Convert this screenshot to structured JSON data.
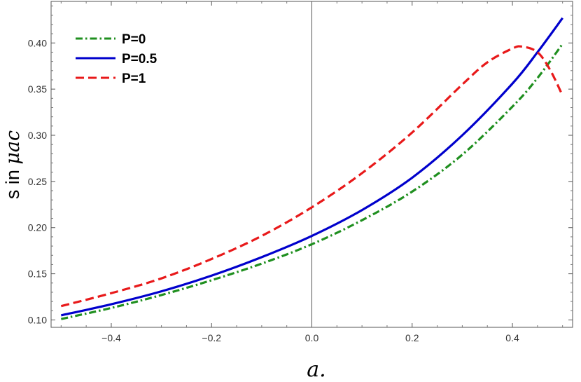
{
  "chart_data": {
    "type": "line",
    "xlabel": "a.",
    "ylabel_plain": "s in ",
    "ylabel_italic": "μac",
    "xlim": [
      -0.52,
      0.52
    ],
    "ylim": [
      0.092,
      0.445
    ],
    "x_ticks": [
      -0.4,
      -0.2,
      0.0,
      0.2,
      0.4
    ],
    "x_tick_labels": [
      "−0.4",
      "−0.2",
      "0.0",
      "0.2",
      "0.4"
    ],
    "y_ticks": [
      0.1,
      0.15,
      0.2,
      0.25,
      0.3,
      0.35,
      0.4
    ],
    "y_tick_labels": [
      "0.10",
      "0.15",
      "0.20",
      "0.25",
      "0.30",
      "0.35",
      "0.40"
    ],
    "grid": false,
    "legend_position": "top-left",
    "vertical_reference_line_x": 0,
    "series": [
      {
        "name": "P=0",
        "color": "#1f8f1f",
        "style": "dash-dot",
        "x": [
          -0.5,
          -0.4,
          -0.3,
          -0.2,
          -0.1,
          0.0,
          0.1,
          0.2,
          0.3,
          0.4,
          0.45,
          0.5
        ],
        "y": [
          0.101,
          0.113,
          0.127,
          0.143,
          0.161,
          0.182,
          0.208,
          0.239,
          0.279,
          0.331,
          0.362,
          0.399
        ]
      },
      {
        "name": "P=0.5",
        "color": "#0000cc",
        "style": "solid",
        "x": [
          -0.5,
          -0.4,
          -0.3,
          -0.2,
          -0.1,
          0.0,
          0.1,
          0.2,
          0.3,
          0.4,
          0.45,
          0.5
        ],
        "y": [
          0.105,
          0.117,
          0.131,
          0.148,
          0.168,
          0.191,
          0.219,
          0.254,
          0.3,
          0.356,
          0.39,
          0.427
        ]
      },
      {
        "name": "P=1",
        "color": "#e8191a",
        "style": "dashed",
        "x": [
          -0.5,
          -0.4,
          -0.3,
          -0.2,
          -0.1,
          0.0,
          0.1,
          0.2,
          0.3,
          0.35,
          0.4,
          0.42,
          0.45,
          0.475,
          0.5
        ],
        "y": [
          0.115,
          0.129,
          0.145,
          0.166,
          0.191,
          0.222,
          0.259,
          0.303,
          0.355,
          0.379,
          0.394,
          0.396,
          0.39,
          0.371,
          0.343
        ]
      }
    ]
  }
}
